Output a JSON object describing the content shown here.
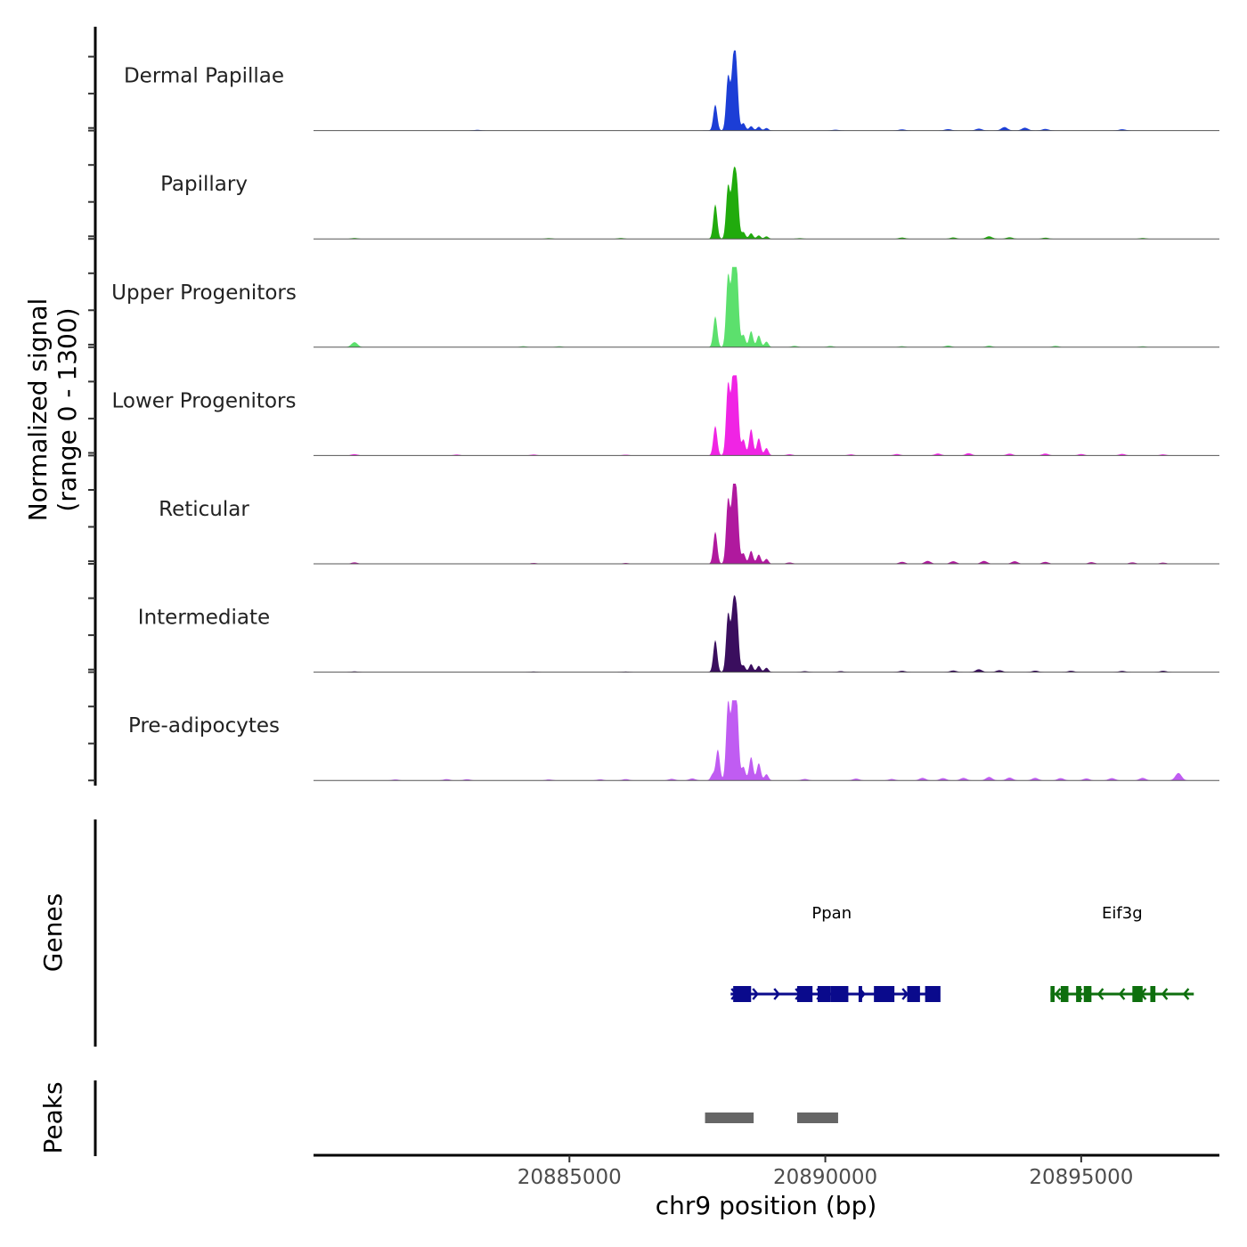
{
  "chart_data": {
    "type": "coverage",
    "chromosome": "chr9",
    "xlabel": "chr9 position (bp)",
    "xlim": [
      20880000,
      20897700
    ],
    "x_ticks": [
      20885000,
      20890000,
      20895000
    ],
    "x_tick_labels": [
      "20885000",
      "20890000",
      "20895000"
    ],
    "ylabel_line1": "Normalized signal",
    "ylabel_line2": "(range 0 - 1300)",
    "ylim": [
      0,
      1300
    ],
    "tracks": [
      {
        "name": "Dermal Papillae",
        "color": "#1c3ed6",
        "background_bumps": [
          [
            20883200,
            10
          ],
          [
            20890200,
            12
          ],
          [
            20891500,
            18
          ],
          [
            20892400,
            22
          ],
          [
            20893000,
            30
          ],
          [
            20893500,
            55
          ],
          [
            20893900,
            45
          ],
          [
            20894300,
            25
          ],
          [
            20895800,
            20
          ]
        ],
        "peaks": [
          [
            20887650,
            0.7
          ],
          [
            20887850,
            420
          ],
          [
            20888100,
            880
          ],
          [
            20888200,
            960
          ],
          [
            20888260,
            920
          ],
          [
            20888400,
            120
          ],
          [
            20888550,
            70
          ],
          [
            20888700,
            60
          ],
          [
            20888850,
            40
          ]
        ]
      },
      {
        "name": "Papillary",
        "color": "#21ab0d",
        "background_bumps": [
          [
            20880800,
            12
          ],
          [
            20884600,
            10
          ],
          [
            20886000,
            12
          ],
          [
            20889500,
            10
          ],
          [
            20891500,
            20
          ],
          [
            20892500,
            22
          ],
          [
            20893200,
            40
          ],
          [
            20893600,
            25
          ],
          [
            20894300,
            18
          ],
          [
            20896200,
            12
          ]
        ],
        "peaks": [
          [
            20887850,
            560
          ],
          [
            20888100,
            860
          ],
          [
            20888200,
            920
          ],
          [
            20888270,
            860
          ],
          [
            20888400,
            110
          ],
          [
            20888550,
            90
          ],
          [
            20888700,
            55
          ],
          [
            20888850,
            40
          ]
        ]
      },
      {
        "name": "Upper Progenitors",
        "color": "#5ce06d",
        "background_bumps": [
          [
            20880800,
            80
          ],
          [
            20884100,
            15
          ],
          [
            20884800,
            14
          ],
          [
            20889400,
            20
          ],
          [
            20890100,
            18
          ],
          [
            20891500,
            15
          ],
          [
            20892400,
            25
          ],
          [
            20893200,
            22
          ],
          [
            20894500,
            20
          ],
          [
            20896200,
            14
          ]
        ],
        "peaks": [
          [
            20887850,
            500
          ],
          [
            20888100,
            1160
          ],
          [
            20888200,
            1270
          ],
          [
            20888270,
            1150
          ],
          [
            20888400,
            200
          ],
          [
            20888550,
            260
          ],
          [
            20888700,
            190
          ],
          [
            20888850,
            90
          ]
        ]
      },
      {
        "name": "Lower Progenitors",
        "color": "#f024e4",
        "background_bumps": [
          [
            20880800,
            20
          ],
          [
            20882800,
            14
          ],
          [
            20884300,
            14
          ],
          [
            20886100,
            12
          ],
          [
            20889300,
            18
          ],
          [
            20890500,
            16
          ],
          [
            20891400,
            22
          ],
          [
            20892200,
            30
          ],
          [
            20892800,
            35
          ],
          [
            20893600,
            28
          ],
          [
            20894300,
            30
          ],
          [
            20895000,
            22
          ],
          [
            20895800,
            24
          ],
          [
            20896600,
            16
          ]
        ],
        "peaks": [
          [
            20887850,
            480
          ],
          [
            20888100,
            1160
          ],
          [
            20888200,
            1240
          ],
          [
            20888270,
            1120
          ],
          [
            20888400,
            260
          ],
          [
            20888550,
            430
          ],
          [
            20888700,
            280
          ],
          [
            20888850,
            120
          ]
        ]
      },
      {
        "name": "Reticular",
        "color": "#b0199e",
        "background_bumps": [
          [
            20880800,
            22
          ],
          [
            20884300,
            12
          ],
          [
            20886100,
            12
          ],
          [
            20889300,
            20
          ],
          [
            20891500,
            30
          ],
          [
            20892000,
            45
          ],
          [
            20892500,
            40
          ],
          [
            20893100,
            45
          ],
          [
            20893700,
            40
          ],
          [
            20894300,
            30
          ],
          [
            20895200,
            25
          ],
          [
            20896000,
            22
          ],
          [
            20896600,
            18
          ]
        ],
        "peaks": [
          [
            20887850,
            520
          ],
          [
            20888100,
            1040
          ],
          [
            20888200,
            1110
          ],
          [
            20888270,
            1000
          ],
          [
            20888400,
            170
          ],
          [
            20888550,
            210
          ],
          [
            20888700,
            150
          ],
          [
            20888850,
            80
          ]
        ]
      },
      {
        "name": "Intermediate",
        "color": "#3a0e5e",
        "background_bumps": [
          [
            20880800,
            10
          ],
          [
            20884300,
            8
          ],
          [
            20886100,
            8
          ],
          [
            20889600,
            14
          ],
          [
            20890300,
            14
          ],
          [
            20891500,
            20
          ],
          [
            20892500,
            25
          ],
          [
            20893000,
            45
          ],
          [
            20893400,
            30
          ],
          [
            20894100,
            22
          ],
          [
            20894800,
            20
          ],
          [
            20895800,
            18
          ],
          [
            20896600,
            20
          ]
        ],
        "peaks": [
          [
            20887850,
            520
          ],
          [
            20888100,
            940
          ],
          [
            20888200,
            990
          ],
          [
            20888270,
            900
          ],
          [
            20888400,
            110
          ],
          [
            20888550,
            130
          ],
          [
            20888700,
            100
          ],
          [
            20888850,
            70
          ]
        ]
      },
      {
        "name": "Pre-adipocytes",
        "color": "#c05cf2",
        "background_bumps": [
          [
            20881600,
            14
          ],
          [
            20882600,
            20
          ],
          [
            20883000,
            18
          ],
          [
            20884600,
            14
          ],
          [
            20885600,
            16
          ],
          [
            20886100,
            20
          ],
          [
            20887000,
            24
          ],
          [
            20887400,
            30
          ],
          [
            20889600,
            22
          ],
          [
            20890600,
            28
          ],
          [
            20891300,
            22
          ],
          [
            20891900,
            40
          ],
          [
            20892300,
            36
          ],
          [
            20892700,
            40
          ],
          [
            20893200,
            55
          ],
          [
            20893600,
            45
          ],
          [
            20894100,
            40
          ],
          [
            20894600,
            36
          ],
          [
            20895100,
            30
          ],
          [
            20895600,
            36
          ],
          [
            20896200,
            40
          ],
          [
            20896900,
            120
          ]
        ],
        "peaks": [
          [
            20887800,
            100
          ],
          [
            20887900,
            500
          ],
          [
            20888100,
            1260
          ],
          [
            20888200,
            1300
          ],
          [
            20888270,
            1180
          ],
          [
            20888400,
            220
          ],
          [
            20888550,
            380
          ],
          [
            20888700,
            280
          ],
          [
            20888850,
            100
          ]
        ]
      }
    ],
    "genes": [
      {
        "name": "Ppan",
        "strand": "+",
        "color": "#0a0a8c",
        "start": 20888150,
        "end": 20892100,
        "exons": [
          [
            20888200,
            20888550
          ],
          [
            20889450,
            20889750
          ],
          [
            20889850,
            20890100
          ],
          [
            20890100,
            20890450
          ],
          [
            20890650,
            20890700
          ],
          [
            20890950,
            20891350
          ],
          [
            20891600,
            20891850
          ],
          [
            20891950,
            20892250
          ]
        ]
      },
      {
        "name": "Eif3g",
        "strand": "-",
        "color": "#0e6f0e",
        "start": 20894400,
        "end": 20897200,
        "exons": [
          [
            20894400,
            20894480
          ],
          [
            20894600,
            20894750
          ],
          [
            20894900,
            20895000
          ],
          [
            20895050,
            20895200
          ],
          [
            20896000,
            20896200
          ],
          [
            20896350,
            20896450
          ]
        ]
      }
    ],
    "peaks_track": [
      [
        20887650,
        20888600
      ],
      [
        20889450,
        20890250
      ]
    ],
    "panels": [
      "Genes",
      "Peaks"
    ]
  }
}
